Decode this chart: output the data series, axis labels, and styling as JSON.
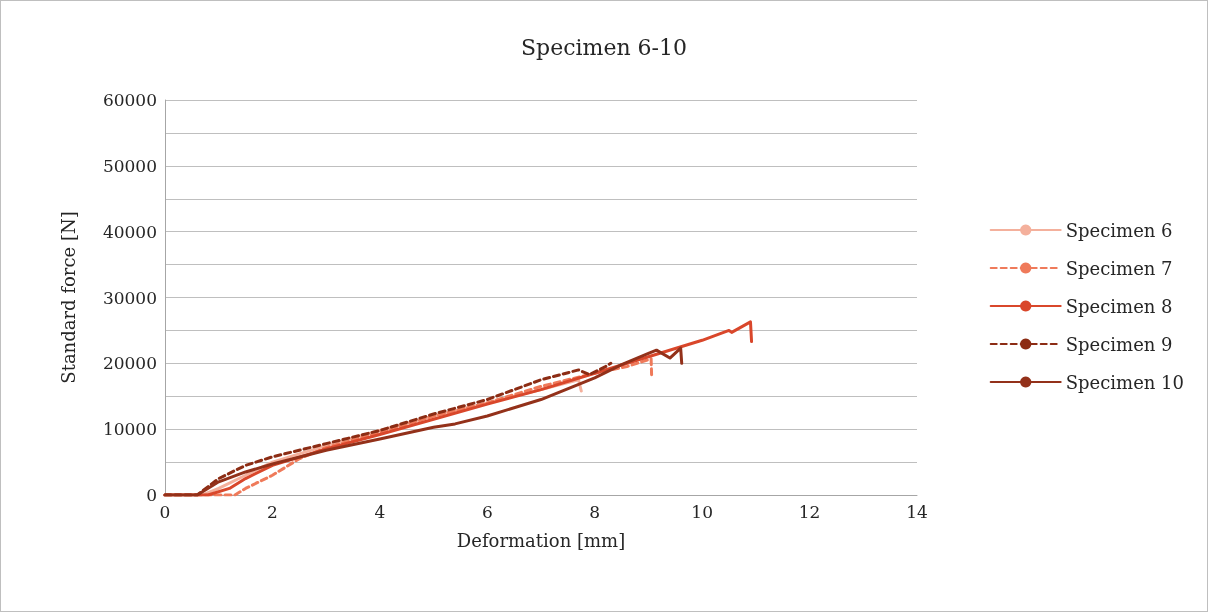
{
  "chart_data": {
    "type": "line",
    "title": "Specimen 6-10",
    "xlabel": "Deformation [mm]",
    "ylabel": "Standard force [N]",
    "xlim": [
      0,
      14
    ],
    "xticks": [
      0,
      2,
      4,
      6,
      8,
      10,
      12,
      14
    ],
    "ylim": [
      0,
      60000
    ],
    "yticks": [
      0,
      {
        "value": 5000,
        "label": null
      },
      10000,
      {
        "value": 15000,
        "label": null
      },
      20000,
      {
        "value": 25000,
        "label": null
      },
      30000,
      {
        "value": 35000,
        "label": null
      },
      40000,
      {
        "value": 45000,
        "label": null
      },
      50000,
      {
        "value": 55000,
        "label": null
      },
      60000
    ],
    "grid": "y",
    "legend": "right",
    "marker": "none",
    "series": [
      {
        "name": "Specimen 6",
        "color": "#f4b09c",
        "line_style": "solid",
        "x": [
          0,
          0.7,
          1.0,
          1.5,
          2,
          3,
          4,
          5,
          6,
          7,
          7.7,
          7.75
        ],
        "values": [
          0,
          0,
          1000,
          3000,
          5000,
          7500,
          9800,
          12000,
          14000,
          16000,
          17500,
          15800
        ]
      },
      {
        "name": "Specimen 7",
        "color": "#ef7a5a",
        "line_style": "dashed",
        "x": [
          0,
          1.3,
          1.5,
          2,
          2.5,
          3,
          4,
          5,
          6,
          7,
          8,
          8.6,
          9.05,
          9.06
        ],
        "values": [
          0,
          0,
          1000,
          3000,
          5500,
          7200,
          9500,
          12000,
          14000,
          16500,
          18500,
          19500,
          20700,
          18000
        ]
      },
      {
        "name": "Specimen 8",
        "color": "#d9472b",
        "line_style": "solid",
        "x": [
          0,
          0.8,
          1.2,
          1.5,
          2,
          3,
          4,
          5,
          6,
          7,
          8,
          9,
          10,
          10.5,
          10.55,
          10.9,
          10.92
        ],
        "values": [
          0,
          0,
          1000,
          2500,
          4500,
          7000,
          9200,
          11500,
          13800,
          16000,
          18500,
          21000,
          23500,
          25000,
          24700,
          26300,
          23300
        ]
      },
      {
        "name": "Specimen 9",
        "color": "#8c2c14",
        "line_style": "dashed",
        "x": [
          0,
          0.6,
          1,
          1.5,
          2,
          3,
          4,
          5,
          6,
          7,
          7.7,
          7.9,
          8.2,
          8.3
        ],
        "values": [
          0,
          0,
          2500,
          4500,
          5800,
          7800,
          9800,
          12300,
          14500,
          17500,
          19000,
          18300,
          19500,
          20000
        ]
      },
      {
        "name": "Specimen 10",
        "color": "#93311a",
        "line_style": "solid",
        "x": [
          0,
          0.6,
          1,
          1.5,
          2,
          3,
          4,
          5,
          5.4,
          6,
          7,
          8,
          8.5,
          9,
          9.15,
          9.4,
          9.6,
          9.62
        ],
        "values": [
          0,
          0,
          2000,
          3500,
          4700,
          6800,
          8500,
          10300,
          10800,
          12000,
          14500,
          17800,
          19800,
          21500,
          22000,
          20800,
          22300,
          20000
        ]
      }
    ]
  }
}
